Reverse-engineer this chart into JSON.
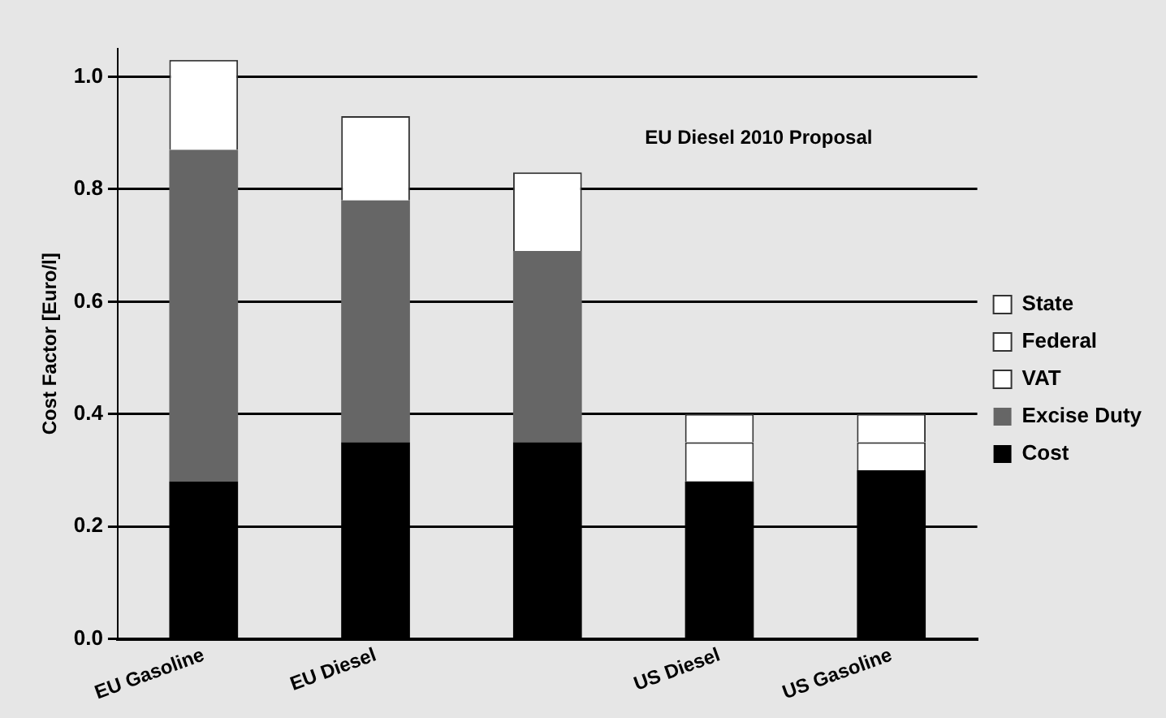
{
  "chart_data": {
    "type": "bar",
    "stacked": true,
    "ylabel": "Cost Factor [Euro/l]",
    "categories": [
      "EU Gasoline",
      "EU Diesel",
      null,
      "US Diesel",
      "US Gasoline"
    ],
    "series": [
      {
        "name": "Cost",
        "color": "#000000",
        "values": [
          0.28,
          0.35,
          0.35,
          0.28,
          0.3
        ]
      },
      {
        "name": "Excise Duty",
        "color": "#666666",
        "values": [
          0.59,
          0.43,
          0.34,
          null,
          null
        ]
      },
      {
        "name": "VAT",
        "color": "#ffffff",
        "values": [
          0.16,
          0.15,
          0.14,
          null,
          null
        ]
      },
      {
        "name": "Federal",
        "color": "#ffffff",
        "values": [
          null,
          null,
          null,
          0.07,
          0.05
        ]
      },
      {
        "name": "State",
        "color": "#ffffff",
        "values": [
          null,
          null,
          null,
          0.05,
          0.05
        ]
      }
    ],
    "ylim": [
      0,
      1.05
    ],
    "yticks": [
      {
        "value": 0,
        "label": "0.0"
      },
      {
        "value": 0.2,
        "label": "0.2"
      },
      {
        "value": 0.4,
        "label": "0.4"
      },
      {
        "value": 0.6,
        "label": "0.6"
      },
      {
        "value": 0.8,
        "label": "0.8"
      },
      {
        "value": 1,
        "label": "1.0"
      }
    ],
    "annotations": [
      "EU Diesel 2010 Proposal"
    ],
    "grid": "y",
    "legend": "right"
  }
}
